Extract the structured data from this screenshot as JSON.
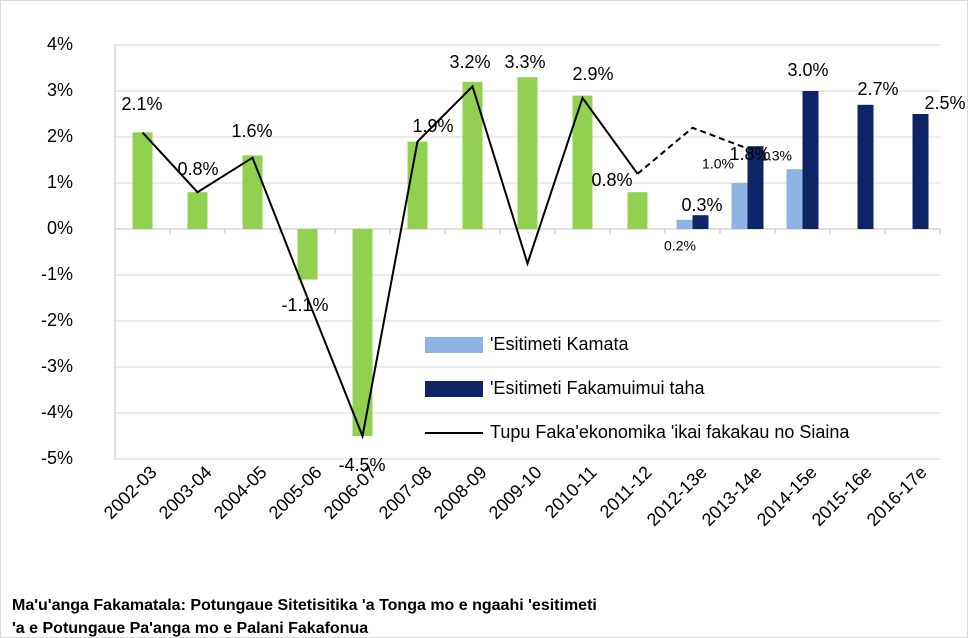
{
  "chart_data": {
    "type": "bar",
    "categories": [
      "2002-03",
      "2003-04",
      "2004-05",
      "2005-06",
      "2006-07",
      "2007-08",
      "2008-09",
      "2009-10",
      "2010-11",
      "2011-12",
      "2012-13e",
      "2013-14e",
      "2014-15e",
      "2015-16e",
      "2016-17e"
    ],
    "series": [
      {
        "color": "#92d050",
        "type": "bar",
        "slot": "center",
        "values": [
          2.1,
          0.8,
          1.6,
          -1.1,
          -4.5,
          1.9,
          3.2,
          3.3,
          2.9,
          0.8,
          null,
          null,
          null,
          null,
          null
        ],
        "value_labels": [
          "2.1%",
          "0.8%",
          "1.6%",
          "-1.1%",
          "-4.5%",
          "1.9%",
          "3.2%",
          "3.3%",
          "2.9%",
          "0.8%",
          null,
          null,
          null,
          null,
          null
        ]
      },
      {
        "name": "'Esitimeti Kamata",
        "color": "#8db4e2",
        "type": "bar",
        "slot": "left",
        "values": [
          null,
          null,
          null,
          null,
          null,
          null,
          null,
          null,
          null,
          null,
          0.2,
          1.0,
          1.3,
          null,
          null
        ],
        "value_labels": [
          null,
          null,
          null,
          null,
          null,
          null,
          null,
          null,
          null,
          null,
          "0.2%",
          "1.0%",
          "1.3%",
          null,
          null
        ]
      },
      {
        "name": "'Esitimeti Fakamuimui taha",
        "color": "#0f2464",
        "type": "bar",
        "slot": "right",
        "values": [
          null,
          null,
          null,
          null,
          null,
          null,
          null,
          null,
          null,
          null,
          0.3,
          1.8,
          3.0,
          2.7,
          2.5
        ],
        "value_labels": [
          null,
          null,
          null,
          null,
          null,
          null,
          null,
          null,
          null,
          null,
          "0.3%",
          "1.8%",
          "3.0%",
          "2.7%",
          "2.5%"
        ]
      },
      {
        "name": "Tupu Faka'ekonomika 'ikai fakakau no Siaina",
        "color": "#000000",
        "type": "line",
        "dash": "solid",
        "values": [
          2.1,
          0.8,
          1.55,
          -1.5,
          -4.5,
          1.9,
          3.1,
          -0.75,
          2.85,
          1.2,
          null,
          null,
          null,
          null,
          null
        ]
      },
      {
        "color": "#000000",
        "type": "line",
        "dash": "dashed",
        "values": [
          null,
          null,
          null,
          null,
          null,
          null,
          null,
          null,
          null,
          1.2,
          2.2,
          1.75,
          null,
          null,
          null
        ]
      }
    ],
    "ylim": [
      -5,
      4
    ],
    "yticks": [
      {
        "value": 4,
        "label": "4%"
      },
      {
        "value": 3,
        "label": "3%"
      },
      {
        "value": 2,
        "label": "2%"
      },
      {
        "value": 1,
        "label": "1%"
      },
      {
        "value": 0,
        "label": "0%"
      },
      {
        "value": -1,
        "label": "-1%"
      },
      {
        "value": -2,
        "label": "-2%"
      },
      {
        "value": -3,
        "label": "-3%"
      },
      {
        "value": -4,
        "label": "-4%"
      },
      {
        "value": -5,
        "label": "-5%"
      }
    ],
    "grid": true,
    "footnote": [
      "Ma'u'anga Fakamatala: Potungaue Sitetisitika 'a Tonga mo e ngaahi 'esitimeti",
      "'a e Potungaue Pa'anga mo e Palani Fakafonua"
    ]
  }
}
